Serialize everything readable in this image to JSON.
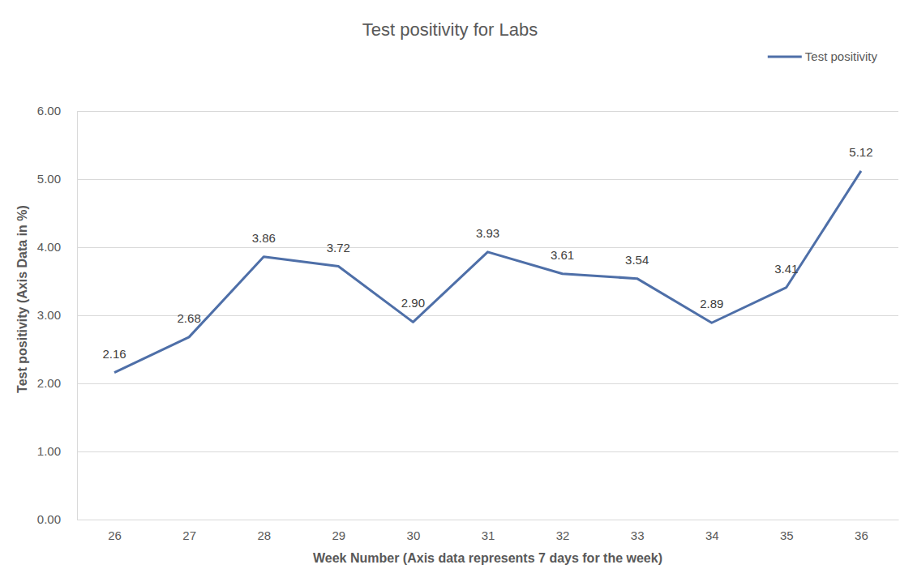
{
  "chart_data": {
    "type": "line",
    "title": "Test positivity for Labs",
    "x_label": "Week Number (Axis data represents 7 days for the week)",
    "y_label": "Test positivity (Axis Data in %)",
    "categories": [
      "26",
      "27",
      "28",
      "29",
      "30",
      "31",
      "32",
      "33",
      "34",
      "35",
      "36"
    ],
    "series": [
      {
        "name": "Test positivity",
        "color": "#4e6fa8",
        "values": [
          2.16,
          2.68,
          3.86,
          3.72,
          2.9,
          3.93,
          3.61,
          3.54,
          2.89,
          3.41,
          5.12
        ],
        "value_labels": [
          "2.16",
          "2.68",
          "3.86",
          "3.72",
          "2.90",
          "3.93",
          "3.61",
          "3.54",
          "2.89",
          "3.41",
          "5.12"
        ]
      }
    ],
    "ylim": [
      0,
      6
    ],
    "yticks": [
      {
        "value": 0,
        "label": "0.00"
      },
      {
        "value": 1,
        "label": "1.00"
      },
      {
        "value": 2,
        "label": "2.00"
      },
      {
        "value": 3,
        "label": "3.00"
      },
      {
        "value": 4,
        "label": "4.00"
      },
      {
        "value": 5,
        "label": "5.00"
      },
      {
        "value": 6,
        "label": "6.00"
      }
    ],
    "grid": true,
    "legend": "top-right",
    "data_labels": true
  }
}
